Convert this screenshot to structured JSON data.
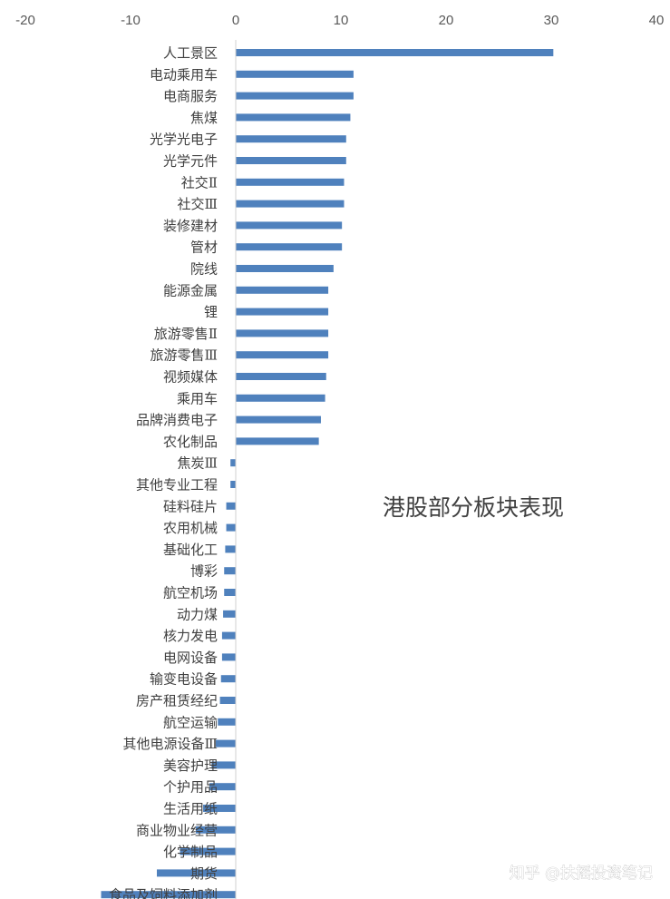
{
  "chart_data": {
    "type": "bar",
    "orientation": "horizontal",
    "title": "港股部分板块表现",
    "xlim": [
      -20,
      40
    ],
    "xticks": [
      -20,
      -10,
      0,
      10,
      20,
      30,
      40
    ],
    "axis_position": "top",
    "grid": false,
    "bar_color": "#4f81bd",
    "categories": [
      "人工景区",
      "电动乘用车",
      "电商服务",
      "焦煤",
      "光学光电子",
      "光学元件",
      "社交Ⅱ",
      "社交Ⅲ",
      "装修建材",
      "管材",
      "院线",
      "能源金属",
      "锂",
      "旅游零售Ⅱ",
      "旅游零售Ⅲ",
      "视频媒体",
      "乘用车",
      "品牌消费电子",
      "农化制品",
      "焦炭Ⅲ",
      "其他专业工程",
      "硅料硅片",
      "农用机械",
      "基础化工",
      "博彩",
      "航空机场",
      "动力煤",
      "核力发电",
      "电网设备",
      "输变电设备",
      "房产租赁经纪",
      "航空运输",
      "其他电源设备Ⅲ",
      "美容护理",
      "个护用品",
      "生活用纸",
      "商业物业经营",
      "化学制品",
      "期货",
      "食品及饲料添加剂"
    ],
    "values": [
      30.2,
      11.2,
      11.2,
      10.9,
      10.5,
      10.5,
      10.3,
      10.3,
      10.1,
      10.1,
      9.3,
      8.8,
      8.8,
      8.8,
      8.8,
      8.6,
      8.5,
      8.1,
      7.9,
      -0.5,
      -0.5,
      -0.9,
      -0.9,
      -1.0,
      -1.1,
      -1.1,
      -1.2,
      -1.3,
      -1.3,
      -1.4,
      -1.5,
      -1.7,
      -1.9,
      -2.3,
      -2.5,
      -3.1,
      -3.8,
      -5.3,
      -7.5,
      -12.8
    ]
  },
  "watermark": "知乎 @扶摇投资笔记"
}
